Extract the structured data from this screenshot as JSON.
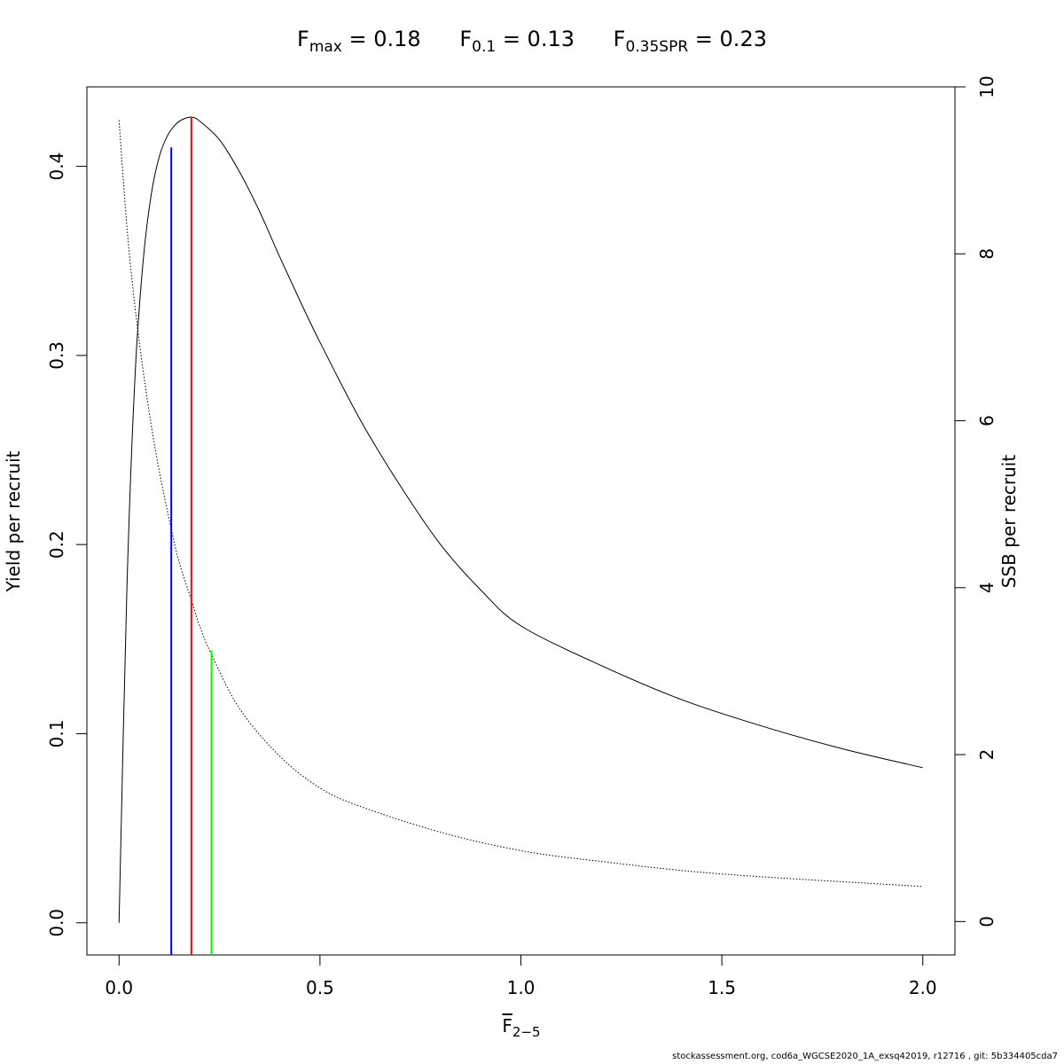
{
  "title": {
    "items": [
      {
        "symbol": "F",
        "subscript": "max",
        "text": " = 0.18"
      },
      {
        "symbol": "F",
        "subscript": "0.1",
        "text": " = 0.13"
      },
      {
        "symbol": "F",
        "subscript": "0.35SPR",
        "text": " = 0.23"
      }
    ]
  },
  "xlabel": {
    "symbol": "F",
    "subscript": "2−5"
  },
  "footer": "stockassessment.org, cod6a_WGCSE2020_1A_exsq42019, r12716 , git: 5b334405cda7",
  "chart_data": {
    "type": "line",
    "xlim": [
      -0.08,
      2.08
    ],
    "ylim": [
      -0.017,
      0.442
    ],
    "y2lim": [
      -0.4,
      10
    ],
    "x_ticks": [
      0.0,
      0.5,
      1.0,
      1.5,
      2.0
    ],
    "x_tick_labels": [
      "0.0",
      "0.5",
      "1.0",
      "1.5",
      "2.0"
    ],
    "y_ticks": [
      0.0,
      0.1,
      0.2,
      0.3,
      0.4
    ],
    "y_tick_labels": [
      "0.0",
      "0.1",
      "0.2",
      "0.3",
      "0.4"
    ],
    "y2_ticks": [
      0,
      2,
      4,
      6,
      8,
      10
    ],
    "y2_tick_labels": [
      "0",
      "2",
      "4",
      "6",
      "8",
      "10"
    ],
    "ylabel": "Yield per recruit",
    "y2label": "SSB per recruit",
    "grid": false,
    "series": [
      {
        "axis": "left",
        "style": "solid",
        "color": "#000000",
        "x": [
          0.0,
          0.02,
          0.04,
          0.06,
          0.08,
          0.1,
          0.12,
          0.14,
          0.16,
          0.18,
          0.2,
          0.25,
          0.3,
          0.35,
          0.4,
          0.45,
          0.5,
          0.6,
          0.7,
          0.8,
          0.9,
          1.0,
          1.2,
          1.4,
          1.6,
          1.8,
          2.0
        ],
        "y": [
          0.0,
          0.18,
          0.29,
          0.35,
          0.385,
          0.405,
          0.416,
          0.422,
          0.425,
          0.426,
          0.424,
          0.414,
          0.397,
          0.376,
          0.352,
          0.329,
          0.307,
          0.266,
          0.231,
          0.2,
          0.176,
          0.157,
          0.136,
          0.118,
          0.104,
          0.092,
          0.082
        ]
      },
      {
        "axis": "right",
        "style": "dotted",
        "color": "#000000",
        "x": [
          0.0,
          0.02,
          0.04,
          0.06,
          0.08,
          0.1,
          0.13,
          0.15,
          0.18,
          0.2,
          0.23,
          0.3,
          0.4,
          0.5,
          0.6,
          0.8,
          1.0,
          1.2,
          1.5,
          2.0
        ],
        "y": [
          9.6,
          8.3,
          7.35,
          6.6,
          5.95,
          5.4,
          4.7,
          4.3,
          3.85,
          3.55,
          3.2,
          2.55,
          1.98,
          1.6,
          1.38,
          1.07,
          0.85,
          0.72,
          0.57,
          0.42
        ]
      }
    ],
    "reference_lines": [
      {
        "name": "F0.1",
        "x": 0.13,
        "y_top": 0.41,
        "color": "#0000ff"
      },
      {
        "name": "Fmax",
        "x": 0.18,
        "y_top": 0.426,
        "color": "#ff0000"
      },
      {
        "name": "F0.35SPR",
        "x": 0.23,
        "y_top": 0.144,
        "color": "#00ff00"
      }
    ]
  }
}
